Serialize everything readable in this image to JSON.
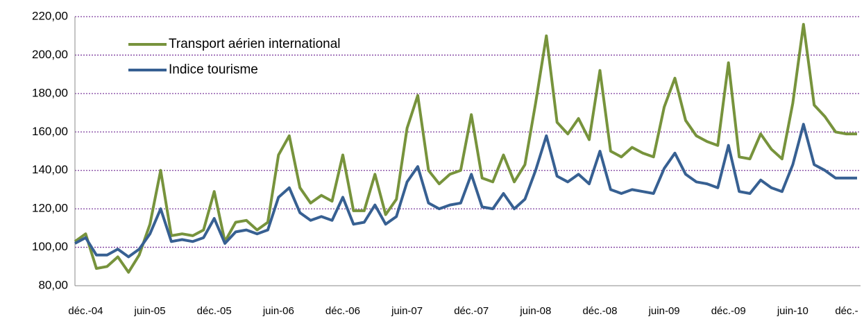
{
  "chart_data": {
    "type": "line",
    "categories": [
      null,
      "déc.-04",
      null,
      null,
      null,
      null,
      null,
      "juin-05",
      null,
      null,
      null,
      null,
      null,
      "déc.-05",
      null,
      null,
      null,
      null,
      null,
      "juin-06",
      null,
      null,
      null,
      null,
      null,
      "déc.-06",
      null,
      null,
      null,
      null,
      null,
      "juin-07",
      null,
      null,
      null,
      null,
      null,
      "déc.-07",
      null,
      null,
      null,
      null,
      null,
      "juin-08",
      null,
      null,
      null,
      null,
      null,
      "déc.-08",
      null,
      null,
      null,
      null,
      null,
      "juin-09",
      null,
      null,
      null,
      null,
      null,
      "déc.-09",
      null,
      null,
      null,
      null,
      null,
      "juin-10",
      null,
      null,
      null,
      null,
      null,
      "déc.-"
    ],
    "series": [
      {
        "name": "Transport aérien international",
        "color": "#77933c",
        "values": [
          103,
          107,
          89,
          90,
          95,
          87,
          96,
          112,
          140,
          106,
          107,
          106,
          109,
          129,
          103,
          113,
          114,
          109,
          113,
          148,
          158,
          131,
          123,
          127,
          124,
          148,
          119,
          119,
          138,
          117,
          125,
          162,
          179,
          140,
          133,
          138,
          140,
          169,
          136,
          134,
          148,
          134,
          143,
          175,
          210,
          165,
          159,
          167,
          156,
          192,
          150,
          147,
          152,
          149,
          147,
          173,
          188,
          166,
          158,
          155,
          153,
          196,
          147,
          146,
          159,
          151,
          146,
          175,
          216,
          174,
          168,
          160,
          159,
          159
        ]
      },
      {
        "name": "Indice tourisme",
        "color": "#376092",
        "values": [
          102,
          105,
          96,
          96,
          99,
          95,
          99,
          107,
          120,
          103,
          104,
          103,
          105,
          115,
          102,
          108,
          109,
          107,
          109,
          126,
          131,
          118,
          114,
          116,
          114,
          126,
          112,
          113,
          122,
          112,
          116,
          134,
          142,
          123,
          120,
          122,
          123,
          138,
          121,
          120,
          128,
          120,
          125,
          140,
          158,
          137,
          134,
          138,
          133,
          150,
          130,
          128,
          130,
          129,
          128,
          141,
          149,
          138,
          134,
          133,
          131,
          153,
          129,
          128,
          135,
          131,
          129,
          143,
          164,
          143,
          140,
          136,
          136,
          136
        ]
      }
    ],
    "ylim": [
      80,
      220
    ],
    "yticks": [
      {
        "value": 80,
        "label": "80,00"
      },
      {
        "value": 100,
        "label": "100,00"
      },
      {
        "value": 120,
        "label": "120,00"
      },
      {
        "value": 140,
        "label": "140,00"
      },
      {
        "value": 160,
        "label": "160,00"
      },
      {
        "value": 180,
        "label": "180,00"
      },
      {
        "value": 200,
        "label": "200,00"
      },
      {
        "value": 220,
        "label": "220,00"
      }
    ],
    "grid": true,
    "legend": "upper left"
  }
}
